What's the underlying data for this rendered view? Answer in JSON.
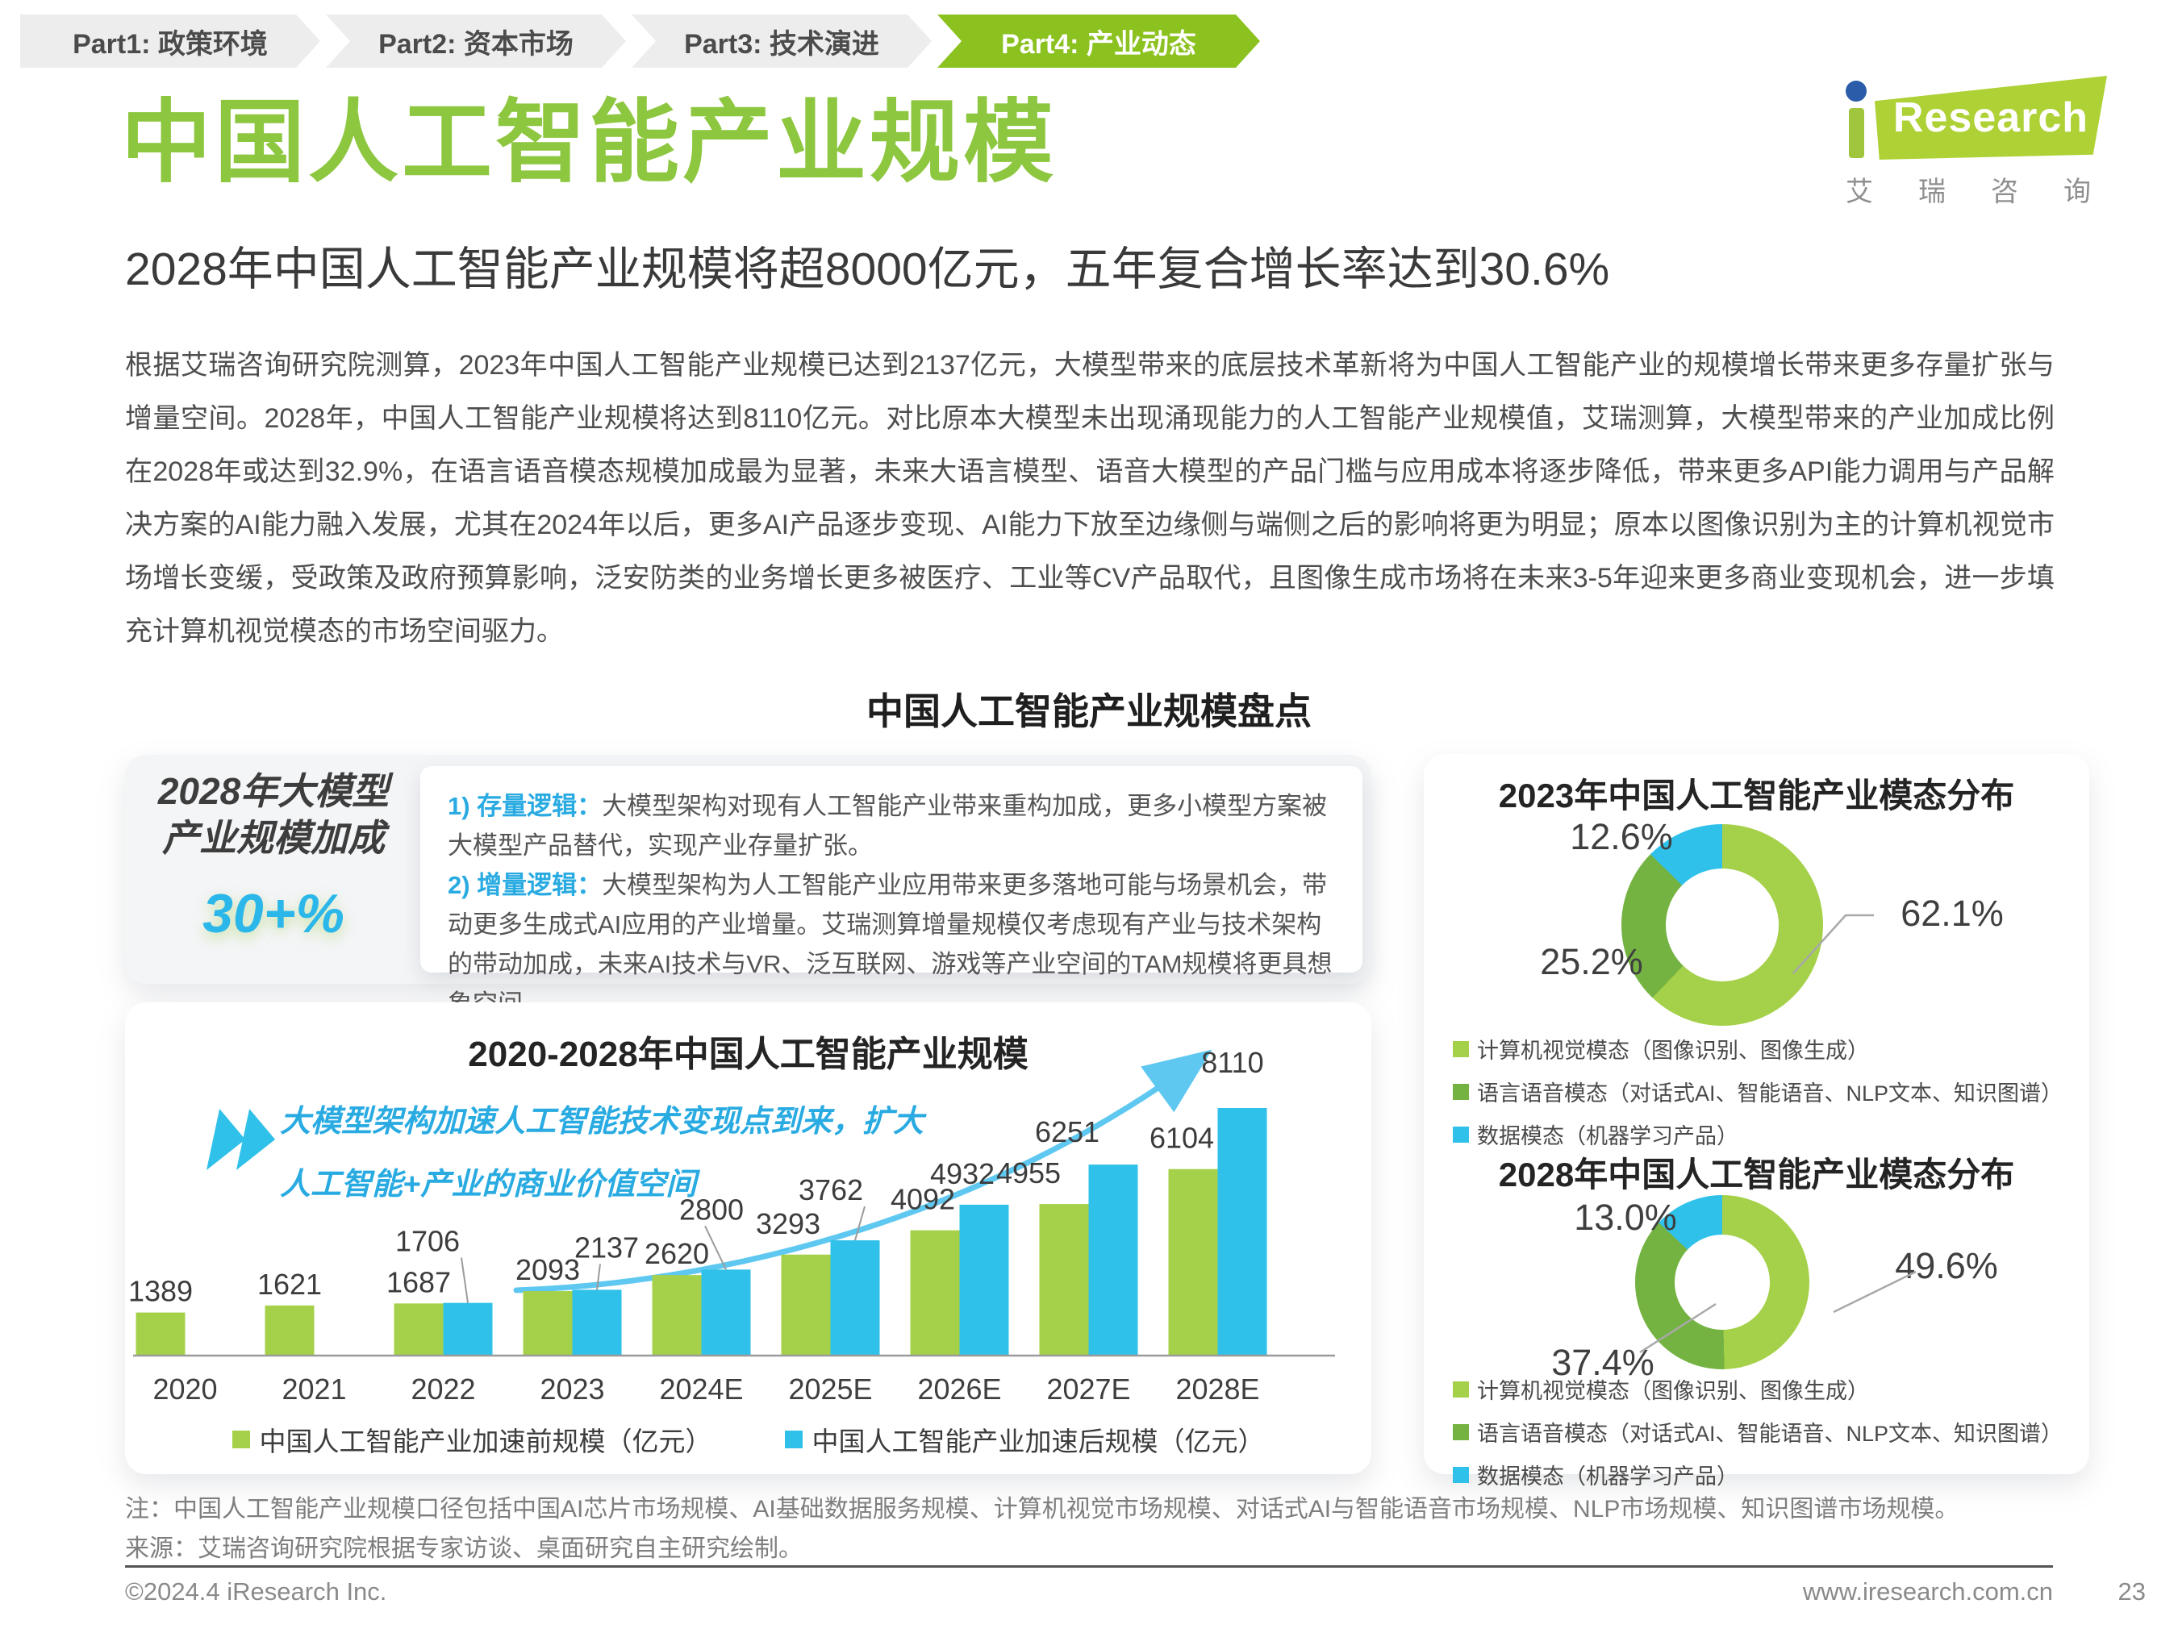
{
  "nav": {
    "tabs": [
      {
        "label": "Part1: 政策环境",
        "active": false
      },
      {
        "label": "Part2: 资本市场",
        "active": false
      },
      {
        "label": "Part3: 技术演进",
        "active": false
      },
      {
        "label": "Part4: 产业动态",
        "active": true
      }
    ]
  },
  "header": {
    "title": "中国人工智能产业规模",
    "logo": {
      "brand": "Research",
      "caption": "艾瑞咨询"
    }
  },
  "subtitle": "2028年中国人工智能产业规模将超8000亿元，五年复合增长率达到30.6%",
  "body_paragraph": "根据艾瑞咨询研究院测算，2023年中国人工智能产业规模已达到2137亿元，大模型带来的底层技术革新将为中国人工智能产业的规模增长带来更多存量扩张与增量空间。2028年，中国人工智能产业规模将达到8110亿元。对比原本大模型未出现涌现能力的人工智能产业规模值，艾瑞测算，大模型带来的产业加成比例在2028年或达到32.9%，在语言语音模态规模加成最为显著，未来大语言模型、语音大模型的产品门槛与应用成本将逐步降低，带来更多API能力调用与产品解决方案的AI能力融入发展，尤其在2024年以后，更多AI产品逐步变现、AI能力下放至边缘侧与端侧之后的影响将更为明显；原本以图像识别为主的计算机视觉市场增长变缓，受政策及政府预算影响，泛安防类的业务增长更多被医疗、工业等CV产品取代，且图像生成市场将在未来3-5年迎来更多商业变现机会，进一步填充计算机视觉模态的市场空间驱力。",
  "section_title": "中国人工智能产业规模盘点",
  "highlight_card": {
    "heading_line1": "2028年大模型",
    "heading_line2": "产业规模加成",
    "value": "30+%",
    "points": [
      {
        "label": "1) 存量逻辑：",
        "text": "大模型架构对现有人工智能产业带来重构加成，更多小模型方案被大模型产品替代，实现产业存量扩张。"
      },
      {
        "label": "2) 增量逻辑：",
        "text": "大模型架构为人工智能产业应用带来更多落地可能与场景机会，带动更多生成式AI应用的产业增量。艾瑞测算增量规模仅考虑现有产业与技术架构的带动加成，未来AI技术与VR、泛互联网、游戏等产业空间的TAM规模将更具想象空间。"
      }
    ]
  },
  "chart_data": [
    {
      "id": "industry-scale",
      "type": "bar",
      "title": "2020-2028年中国人工智能产业规模",
      "annotation_lines": [
        "大模型架构加速人工智能技术变现点到来，扩大",
        "人工智能+产业的商业价值空间"
      ],
      "categories": [
        "2020",
        "2021",
        "2022",
        "2023",
        "2024E",
        "2025E",
        "2026E",
        "2027E",
        "2028E"
      ],
      "series": [
        {
          "name": "中国人工智能产业加速前规模（亿元）",
          "color": "#a5d14a",
          "values": [
            1389,
            1621,
            1687,
            2093,
            2620,
            3293,
            4092,
            4955,
            6104
          ]
        },
        {
          "name": "中国人工智能产业加速后规模（亿元）",
          "color": "#2fc1e9",
          "values": [
            null,
            null,
            1706,
            2137,
            2800,
            3762,
            4932,
            6251,
            8110
          ]
        }
      ],
      "ylim": [
        0,
        8110
      ],
      "grid": false,
      "legend_position": "bottom"
    },
    {
      "id": "modality-2023",
      "type": "pie",
      "title": "2023年中国人工智能产业模态分布",
      "slices": [
        {
          "label": "计算机视觉模态（图像识别、图像生成）",
          "value": 62.1,
          "display": "62.1%",
          "color": "#a5d14a"
        },
        {
          "label": "语言语音模态（对话式AI、智能语音、NLP文本、知识图谱）",
          "value": 25.2,
          "display": "25.2%",
          "color": "#74b342"
        },
        {
          "label": "数据模态（机器学习产品）",
          "value": 12.6,
          "display": "12.6%",
          "color": "#2fc1e9"
        }
      ]
    },
    {
      "id": "modality-2028",
      "type": "pie",
      "title": "2028年中国人工智能产业模态分布",
      "slices": [
        {
          "label": "计算机视觉模态（图像识别、图像生成）",
          "value": 49.6,
          "display": "49.6%",
          "color": "#a5d14a"
        },
        {
          "label": "语言语音模态（对话式AI、智能语音、NLP文本、知识图谱）",
          "value": 37.4,
          "display": "37.4%",
          "color": "#74b342"
        },
        {
          "label": "数据模态（机器学习产品）",
          "value": 13.0,
          "display": "13.0%",
          "color": "#2fc1e9"
        }
      ]
    }
  ],
  "notes": {
    "note": "注：中国人工智能产业规模口径包括中国AI芯片市场规模、AI基础数据服务规模、计算机视觉市场规模、对话式AI与智能语音市场规模、NLP市场规模、知识图谱市场规模。",
    "source": "来源：艾瑞咨询研究院根据专家访谈、桌面研究自主研究绘制。"
  },
  "footer": {
    "copyright": "©2024.4 iResearch Inc.",
    "website": "www.iresearch.com.cn",
    "page": "23"
  },
  "colors": {
    "accent_green": "#8dc63f",
    "tab_green": "#8cc21f",
    "bar_green": "#a5d14a",
    "bar_blue": "#2fc1e9",
    "mid_green": "#74b342",
    "cyan_text": "#29abe2",
    "arrow_cyan": "#5fc8f0"
  }
}
